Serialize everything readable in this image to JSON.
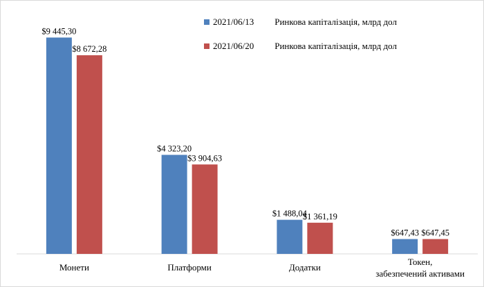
{
  "chart_data": {
    "type": "bar",
    "title": "",
    "xlabel": "",
    "ylabel": "",
    "ylim": [
      0,
      10000
    ],
    "grid": false,
    "legend_position": "top-right",
    "categories": [
      [
        "Монети"
      ],
      [
        "Платформи"
      ],
      [
        "Додатки"
      ],
      [
        "Токен,",
        "забезпечений активами"
      ]
    ],
    "series": [
      {
        "name_date": "2021/06/13",
        "name_metric": "Ринкова капіталізація, млрд дол",
        "color": "#4f81bd",
        "values": [
          9445.3,
          4323.2,
          1488.04,
          647.43
        ],
        "labels": [
          "$9 445,30",
          "$4 323,20",
          "$1 488,04",
          "$647,43"
        ]
      },
      {
        "name_date": "2021/06/20",
        "name_metric": "Ринкова капіталізація, млрд дол",
        "color": "#c0504d",
        "values": [
          8672.28,
          3904.63,
          1361.19,
          647.45
        ],
        "labels": [
          "$8 672,28",
          "$3 904,63",
          "$1 361,19",
          "$647,45"
        ]
      }
    ]
  }
}
